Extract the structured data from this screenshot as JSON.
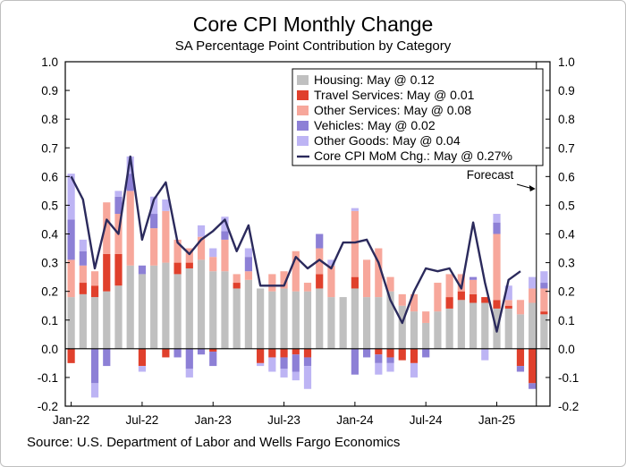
{
  "chart_data": {
    "type": "bar",
    "title": "Core CPI Monthly Change",
    "subtitle": "SA Percentage Point Contribution by Category",
    "source": "Source: U.S. Department of Labor and Wells Fargo Economics",
    "ylim": [
      -0.2,
      1.0
    ],
    "y_ticks": [
      "1.0",
      "0.9",
      "0.8",
      "0.7",
      "0.6",
      "0.5",
      "0.4",
      "0.3",
      "0.2",
      "0.1",
      "0.0",
      "-0.1",
      "-0.2"
    ],
    "x_tick_labels": [
      "Jan-22",
      "Jul-22",
      "Jan-23",
      "Jul-23",
      "Jan-24",
      "Jul-24",
      "Jan-25"
    ],
    "x_tick_index": [
      0,
      6,
      12,
      18,
      24,
      30,
      36
    ],
    "n_months": 41,
    "forecast_label": "Forecast",
    "forecast_index": 40,
    "series": [
      {
        "name": "Housing: May @ 0.12",
        "color": "#c0c0c0",
        "values": [
          0.18,
          0.19,
          0.18,
          0.2,
          0.22,
          0.29,
          0.26,
          0.29,
          0.3,
          0.26,
          0.28,
          0.31,
          0.27,
          0.27,
          0.21,
          0.24,
          0.21,
          0.2,
          0.21,
          0.2,
          0.2,
          0.21,
          0.18,
          0.18,
          0.21,
          0.18,
          0.18,
          0.2,
          0.15,
          0.13,
          0.09,
          0.13,
          0.14,
          0.17,
          0.16,
          0.16,
          0.14,
          0.14,
          0.12,
          0.16,
          0.12
        ]
      },
      {
        "name": "Travel Services: May @ 0.01",
        "color": "#e0402c",
        "values": [
          -0.05,
          0.04,
          0.04,
          0.13,
          0.11,
          0.0,
          -0.06,
          0.0,
          -0.03,
          0.04,
          0.02,
          0.0,
          -0.01,
          0.0,
          0.02,
          0.0,
          -0.05,
          -0.03,
          -0.03,
          -0.02,
          -0.03,
          0.05,
          0.0,
          0.0,
          0.04,
          0.0,
          -0.02,
          -0.03,
          -0.04,
          -0.05,
          0.0,
          0.0,
          0.04,
          0.03,
          0.03,
          0.02,
          0.03,
          0.01,
          -0.06,
          -0.12,
          0.01
        ]
      },
      {
        "name": "Other Services: May @ 0.08",
        "color": "#f7a79b",
        "values": [
          0.13,
          0.06,
          0.05,
          0.18,
          0.14,
          0.26,
          0.0,
          0.13,
          0.18,
          0.08,
          0.05,
          0.08,
          0.05,
          0.11,
          0.03,
          0.03,
          0.0,
          0.06,
          0.06,
          0.14,
          0.03,
          0.09,
          0.11,
          0.0,
          0.23,
          0.13,
          0.17,
          0.05,
          0.04,
          0.06,
          0.04,
          0.1,
          0.08,
          0.06,
          0.05,
          0.0,
          0.23,
          0.02,
          0.05,
          0.05,
          0.08
        ]
      },
      {
        "name": "Vehicles: May @ 0.02",
        "color": "#8d80d6",
        "values": [
          0.14,
          0.05,
          -0.12,
          -0.06,
          0.06,
          0.06,
          0.03,
          0.05,
          0.0,
          -0.03,
          -0.07,
          -0.02,
          -0.05,
          0.03,
          0.0,
          0.05,
          0.0,
          0.0,
          -0.04,
          -0.06,
          -0.03,
          0.05,
          0.0,
          0.0,
          -0.09,
          -0.03,
          -0.03,
          -0.02,
          0.0,
          0.0,
          -0.03,
          0.0,
          0.0,
          0.0,
          0.01,
          0.0,
          0.04,
          0.0,
          -0.02,
          -0.02,
          0.02
        ]
      },
      {
        "name": "Other Goods: May @ 0.04",
        "color": "#bdb4f4",
        "values": [
          0.16,
          0.04,
          -0.05,
          0.0,
          0.02,
          0.06,
          -0.02,
          0.06,
          0.04,
          0.0,
          -0.03,
          0.04,
          0.03,
          0.05,
          0.0,
          0.03,
          -0.01,
          -0.05,
          -0.03,
          -0.03,
          -0.08,
          0.0,
          0.02,
          0.0,
          0.01,
          0.0,
          -0.04,
          -0.03,
          0.0,
          -0.05,
          0.0,
          0.0,
          0.0,
          0.0,
          0.0,
          -0.04,
          0.03,
          0.05,
          0.0,
          0.04,
          0.04
        ]
      }
    ],
    "line": {
      "name": "Core CPI MoM Chg.: May @ 0.27%",
      "color": "#2b2a5c",
      "values": [
        0.6,
        0.52,
        0.28,
        0.45,
        0.4,
        0.67,
        0.38,
        0.52,
        0.58,
        0.37,
        0.33,
        0.38,
        0.41,
        0.45,
        0.34,
        0.43,
        0.22,
        0.22,
        0.22,
        0.32,
        0.28,
        0.31,
        0.28,
        0.37,
        0.37,
        0.38,
        0.3,
        0.17,
        0.09,
        0.2,
        0.28,
        0.27,
        0.28,
        0.21,
        0.44,
        0.23,
        0.06,
        0.24,
        0.27
      ]
    }
  }
}
